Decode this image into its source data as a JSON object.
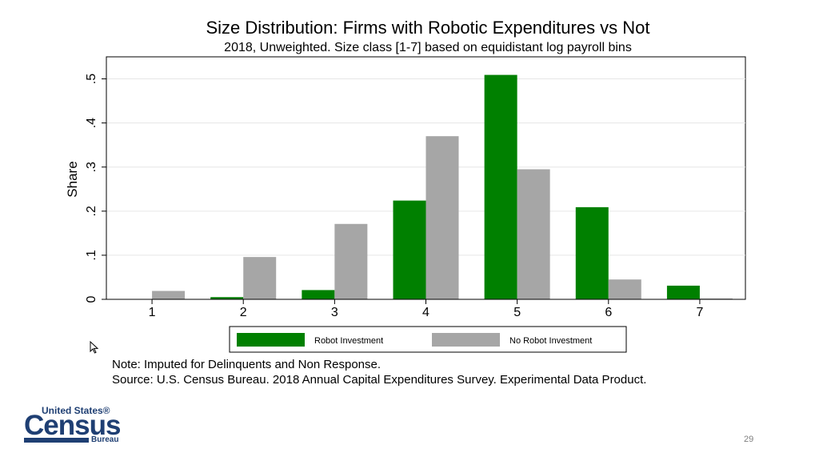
{
  "slide": {
    "page_number": "29"
  },
  "logo": {
    "line1": "United States®",
    "line2": "Census",
    "line3": "Bureau"
  },
  "notes": {
    "line1": "Note: Imputed for Delinquents and Non Response.",
    "line2": "Source: U.S. Census Bureau. 2018 Annual Capital Expenditures Survey. Experimental Data Product."
  },
  "chart_data": {
    "type": "bar",
    "title": "Size Distribution: Firms with Robotic Expenditures vs Not",
    "subtitle": "2018, Unweighted. Size class [1-7] based on equidistant log payroll bins",
    "xlabel": "",
    "ylabel": "Share",
    "categories": [
      "1",
      "2",
      "3",
      "4",
      "5",
      "6",
      "7"
    ],
    "ylim": [
      0,
      0.55
    ],
    "yticks": [
      0,
      0.1,
      0.2,
      0.3,
      0.4,
      0.5
    ],
    "ytick_labels": [
      "0",
      ".1",
      ".2",
      ".3",
      ".4",
      ".5"
    ],
    "grid": true,
    "legend_position": "bottom",
    "series": [
      {
        "name": "Robot Investment",
        "color": "#008000",
        "values": [
          0.0,
          0.005,
          0.021,
          0.224,
          0.509,
          0.209,
          0.031
        ]
      },
      {
        "name": "No Robot Investment",
        "color": "#a6a6a6",
        "values": [
          0.019,
          0.096,
          0.171,
          0.37,
          0.295,
          0.045,
          0.002
        ]
      }
    ]
  }
}
